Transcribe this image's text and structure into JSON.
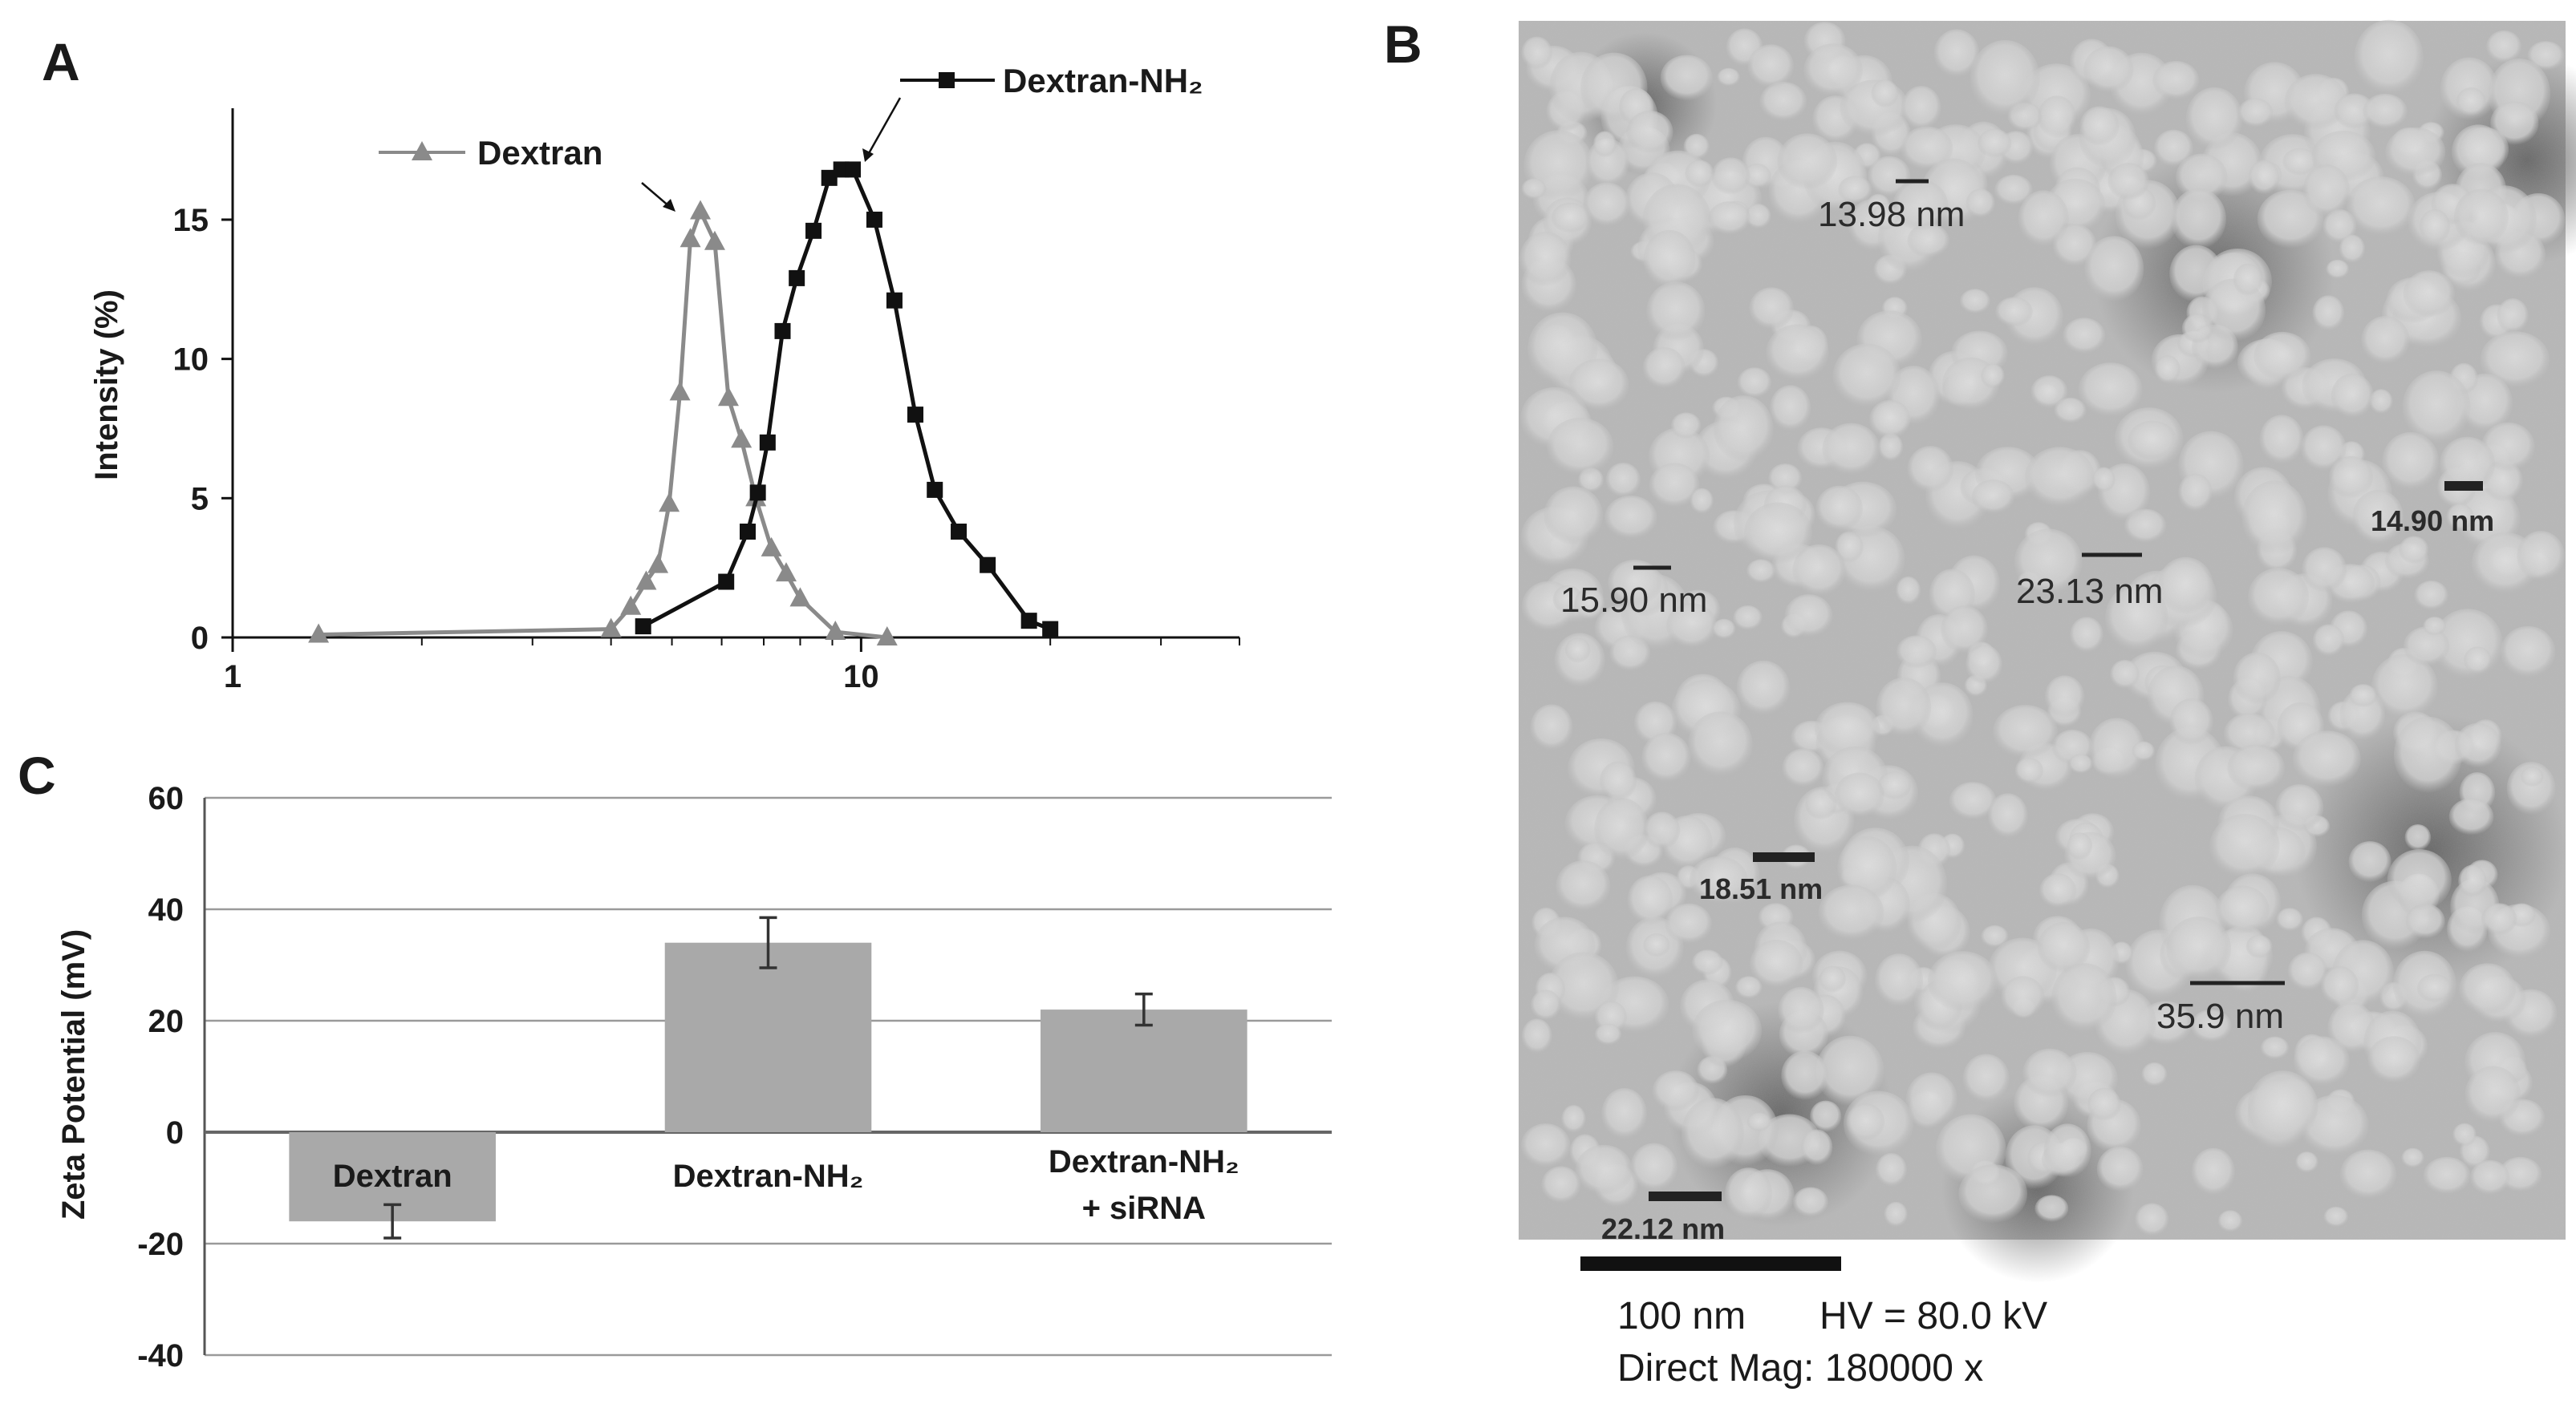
{
  "panels": {
    "a": "A",
    "b": "B",
    "c": "C"
  },
  "chart_data": [
    {
      "type": "line",
      "panel": "A",
      "title": "",
      "xlabel": "",
      "ylabel": "Intensity (%)",
      "x_scale": "log",
      "xlim": [
        1,
        40
      ],
      "ylim": [
        0,
        19
      ],
      "x_ticks": [
        1,
        10
      ],
      "y_ticks": [
        0,
        5,
        10,
        15
      ],
      "grid": false,
      "series": [
        {
          "name": "Dextran",
          "marker": "triangle",
          "color": "#8a8a8a",
          "x": [
            1.37,
            4.0,
            4.3,
            4.55,
            4.75,
            4.95,
            5.15,
            5.35,
            5.55,
            5.85,
            6.15,
            6.45,
            6.8,
            7.2,
            7.6,
            8.0,
            9.1,
            11.0
          ],
          "y": [
            0.1,
            0.3,
            1.1,
            2.0,
            2.6,
            4.8,
            8.8,
            14.3,
            15.3,
            14.2,
            8.6,
            7.1,
            5.0,
            3.2,
            2.3,
            1.4,
            0.2,
            0.0
          ]
        },
        {
          "name": "Dextran-NH₂",
          "marker": "square",
          "color": "#111111",
          "x": [
            4.5,
            6.1,
            6.6,
            6.85,
            7.1,
            7.5,
            7.9,
            8.4,
            8.9,
            9.3,
            9.7,
            10.5,
            11.3,
            12.2,
            13.1,
            14.3,
            15.9,
            18.5,
            20.0
          ],
          "y": [
            0.4,
            2.0,
            3.8,
            5.2,
            7.0,
            11.0,
            12.9,
            14.6,
            16.5,
            16.8,
            16.8,
            15.0,
            12.1,
            8.0,
            5.3,
            3.8,
            2.6,
            0.6,
            0.3
          ]
        }
      ]
    },
    {
      "type": "bar",
      "panel": "C",
      "title": "",
      "xlabel": "",
      "ylabel": "Zeta Potential (mV)",
      "ylim": [
        -40,
        60
      ],
      "y_ticks": [
        -40,
        -20,
        0,
        20,
        40,
        60
      ],
      "grid": true,
      "color": "#a9a9a9",
      "categories": [
        "Dextran",
        "Dextran-NH₂",
        "Dextran-NH₂ + siRNA"
      ],
      "category_lines": [
        [
          "Dextran"
        ],
        [
          "Dextran-NH₂"
        ],
        [
          "Dextran-NH₂",
          "+ siRNA"
        ]
      ],
      "values": [
        -16.0,
        34.0,
        22.0
      ],
      "errors": [
        3.0,
        4.5,
        2.8
      ]
    }
  ],
  "micrograph": {
    "panel": "B",
    "measurements": [
      {
        "label": "13.98 nm",
        "bold": false
      },
      {
        "label": "14.90 nm",
        "bold": true
      },
      {
        "label": "15.90 nm",
        "bold": false
      },
      {
        "label": "23.13 nm",
        "bold": false
      },
      {
        "label": "18.51 nm",
        "bold": true
      },
      {
        "label": "35.9 nm",
        "bold": false
      },
      {
        "label": "22.12 nm",
        "bold": true
      }
    ],
    "scale_bar_label": "100 nm",
    "hv": "HV = 80.0 kV",
    "magnification": "Direct Mag: 180000 x"
  }
}
